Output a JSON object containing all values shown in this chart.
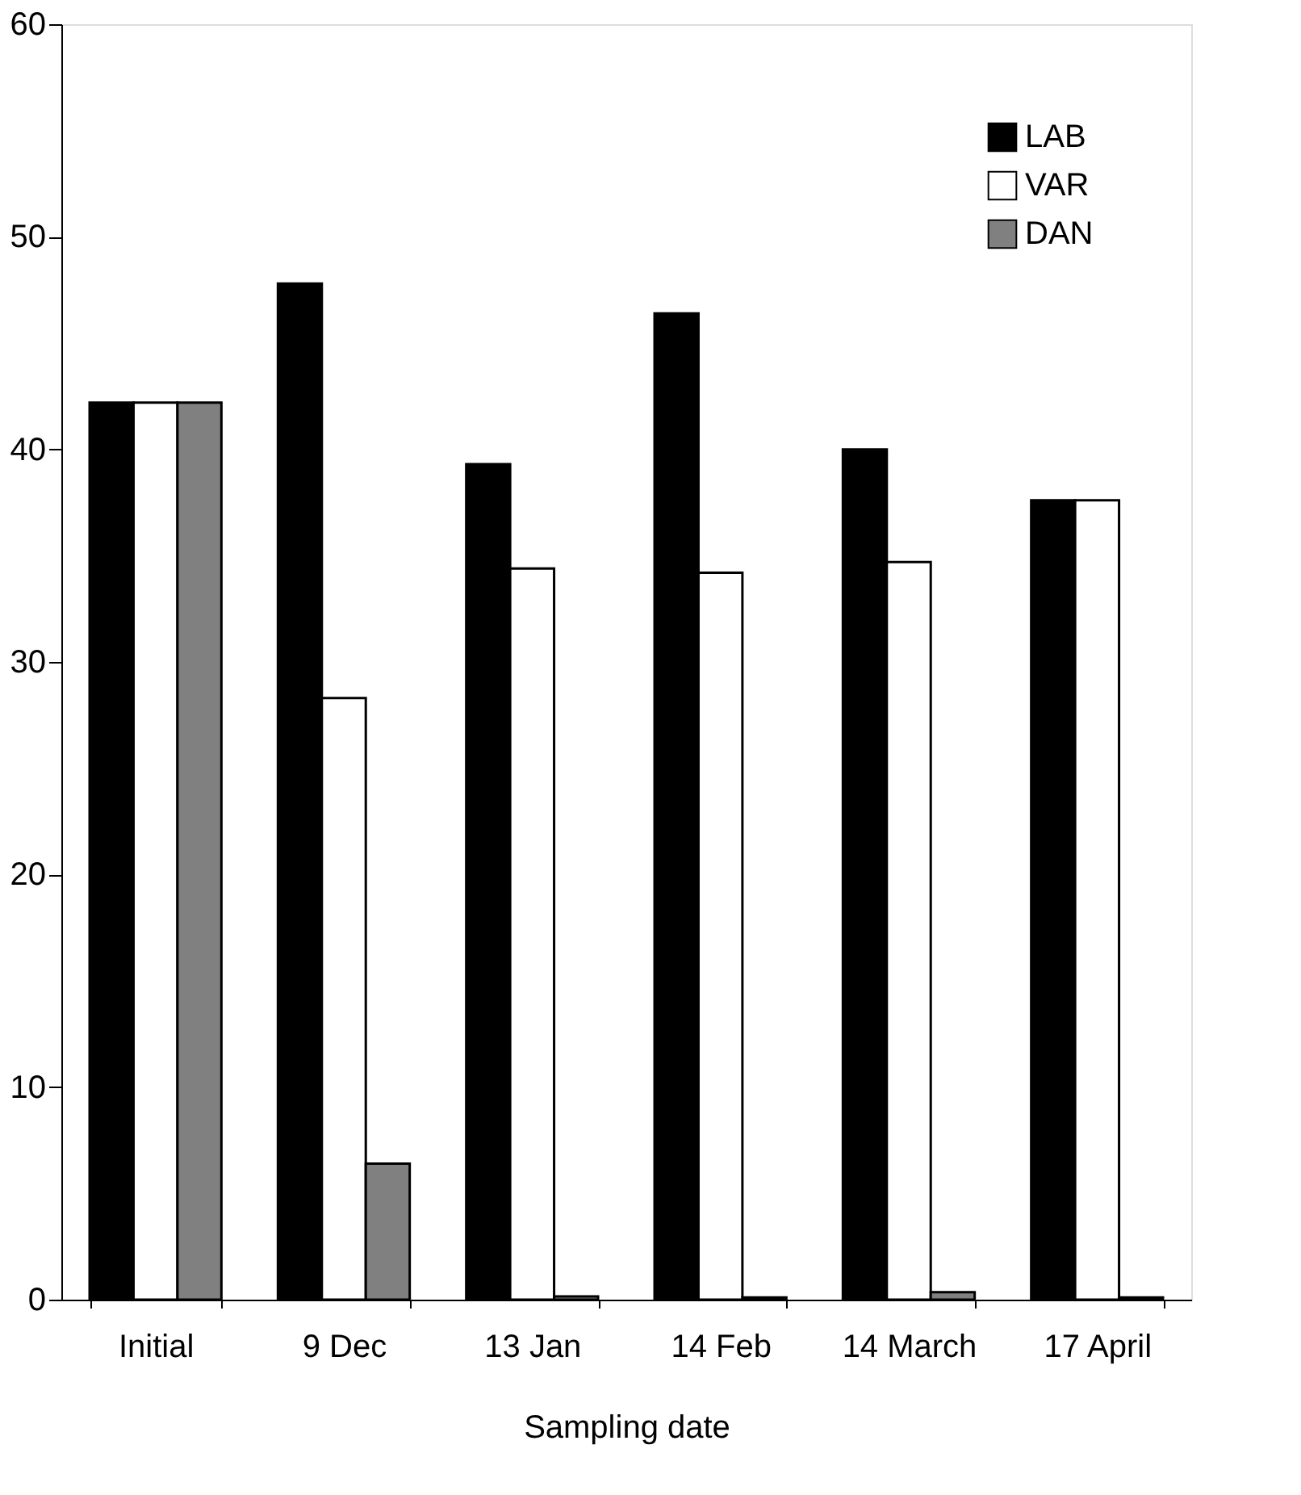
{
  "chart_data": {
    "type": "bar",
    "xlabel": "Sampling date",
    "categories": [
      "Initial",
      "9 Dec",
      "13 Jan",
      "14 Feb",
      "14 March",
      "17 April"
    ],
    "series": [
      {
        "name": "LAB",
        "color": "#000000",
        "values": [
          42.2,
          47.8,
          39.3,
          46.4,
          40.0,
          37.6
        ]
      },
      {
        "name": "VAR",
        "color": "#ffffff",
        "values": [
          42.2,
          28.3,
          34.4,
          34.2,
          34.7,
          37.6
        ]
      },
      {
        "name": "DAN",
        "color": "#808080",
        "values": [
          42.2,
          6.4,
          0.15,
          0.1,
          0.35,
          0.1
        ]
      }
    ],
    "ylim": [
      0,
      60
    ],
    "yticks": [
      0,
      10,
      20,
      30,
      40,
      50,
      60
    ],
    "grid": false,
    "legend": "top right"
  }
}
